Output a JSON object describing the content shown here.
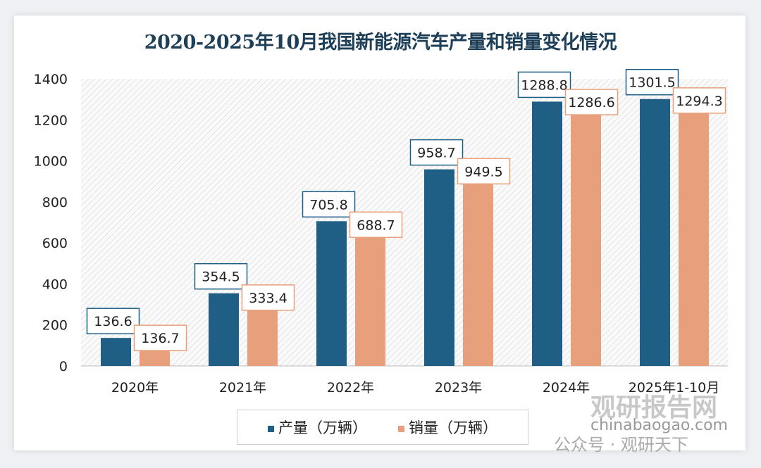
{
  "chart_data": {
    "type": "bar",
    "title": "2020-2025年10月我国新能源汽车产量和销量变化情况",
    "categories": [
      "2020年",
      "2021年",
      "2022年",
      "2023年",
      "2024年",
      "2025年1-10月"
    ],
    "series": [
      {
        "name": "产量（万辆）",
        "color": "#1f5f86",
        "values": [
          136.6,
          354.5,
          705.8,
          958.7,
          1288.8,
          1301.5
        ]
      },
      {
        "name": "销量（万辆）",
        "color": "#e8a07c",
        "values": [
          136.7,
          333.4,
          688.7,
          949.5,
          1286.6,
          1294.3
        ]
      }
    ],
    "yticks": [
      0,
      200,
      400,
      600,
      800,
      1000,
      1200,
      1400
    ],
    "ylim": [
      0,
      1400
    ],
    "grid": false,
    "legend": "bottom",
    "plot_background": "diagonal-hatch"
  },
  "watermark": {
    "brand": "观研报告网",
    "url": "chinabaogao.com",
    "account": "公众号 · 观研天下"
  }
}
